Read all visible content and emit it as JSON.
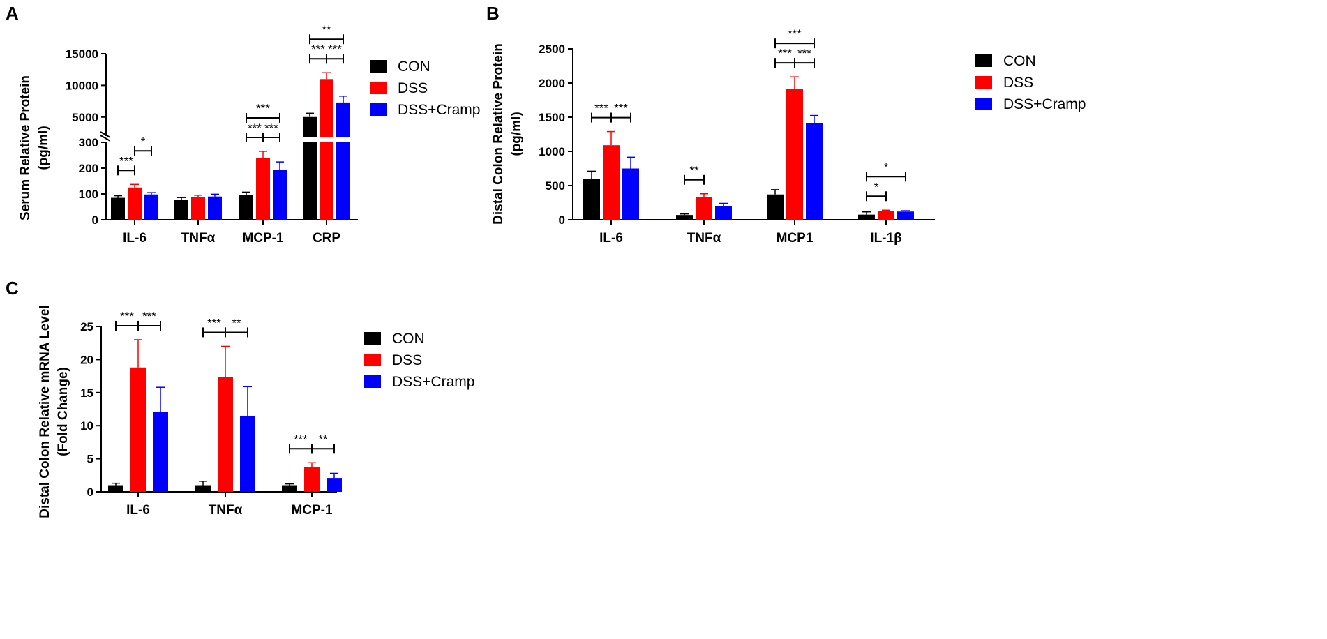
{
  "colors": {
    "CON": "#000000",
    "DSS": "#ff0000",
    "DSS+Cramp": "#0000ff"
  },
  "chart_data": [
    {
      "id": "A",
      "type": "bar",
      "panel_label": "A",
      "ylabel_line1": "Serum Relative Protein",
      "ylabel_line2": "(pg/ml)",
      "categories": [
        "IL-6",
        "TNFα",
        "MCP-1",
        "CRP"
      ],
      "series": [
        {
          "name": "CON",
          "values": [
            85,
            78,
            97,
            5000
          ],
          "errors": [
            8,
            8,
            10,
            600
          ]
        },
        {
          "name": "DSS",
          "values": [
            125,
            88,
            240,
            11000
          ],
          "errors": [
            12,
            7,
            25,
            1000
          ]
        },
        {
          "name": "DSS+Cramp",
          "values": [
            98,
            90,
            192,
            7300
          ],
          "errors": [
            7,
            9,
            32,
            1000
          ]
        }
      ],
      "axis_break": {
        "lower_range": [
          0,
          300
        ],
        "upper_range": [
          2000,
          15000
        ]
      },
      "ticks_lower": [
        "0",
        "100",
        "200",
        "300"
      ],
      "ticks_upper": [
        "5000",
        "10000",
        "15000"
      ],
      "tick_values_lower": [
        0,
        100,
        200,
        300
      ],
      "tick_values_upper": [
        5000,
        10000,
        15000
      ],
      "significance": [
        {
          "cat": 0,
          "from": 0,
          "to": 1,
          "label": "***",
          "level": 0
        },
        {
          "cat": 0,
          "from": 1,
          "to": 2,
          "label": "*",
          "level": 1
        },
        {
          "cat": 2,
          "from": 0,
          "to": 1,
          "label": "***",
          "level": 0
        },
        {
          "cat": 2,
          "from": 1,
          "to": 2,
          "label": "***",
          "level": 0
        },
        {
          "cat": 2,
          "from": 0,
          "to": 2,
          "label": "***",
          "level": 1
        },
        {
          "cat": 3,
          "from": 0,
          "to": 1,
          "label": "***",
          "level": 0
        },
        {
          "cat": 3,
          "from": 1,
          "to": 2,
          "label": "***",
          "level": 0
        },
        {
          "cat": 3,
          "from": 0,
          "to": 2,
          "label": "**",
          "level": 1
        }
      ],
      "legend": [
        "CON",
        "DSS",
        "DSS+Cramp"
      ]
    },
    {
      "id": "B",
      "type": "bar",
      "panel_label": "B",
      "ylabel_line1": "Distal Colon Relative Protein",
      "ylabel_line2": "(pg/ml)",
      "categories": [
        "IL-6",
        "TNFα",
        "MCP1",
        "IL-1β"
      ],
      "series": [
        {
          "name": "CON",
          "values": [
            600,
            70,
            370,
            75
          ],
          "errors": [
            110,
            15,
            70,
            40
          ]
        },
        {
          "name": "DSS",
          "values": [
            1090,
            330,
            1910,
            130
          ],
          "errors": [
            200,
            50,
            180,
            10
          ]
        },
        {
          "name": "DSS+Cramp",
          "values": [
            750,
            200,
            1410,
            120
          ],
          "errors": [
            165,
            40,
            115,
            12
          ]
        }
      ],
      "ylim": [
        0,
        2500
      ],
      "tick_values": [
        0,
        500,
        1000,
        1500,
        2000,
        2500
      ],
      "ticks": [
        "0",
        "500",
        "1000",
        "1500",
        "2000",
        "2500"
      ],
      "significance": [
        {
          "cat": 0,
          "from": 0,
          "to": 1,
          "label": "***",
          "level": 0
        },
        {
          "cat": 0,
          "from": 1,
          "to": 2,
          "label": "***",
          "level": 0
        },
        {
          "cat": 1,
          "from": 0,
          "to": 1,
          "label": "**",
          "level": 0
        },
        {
          "cat": 2,
          "from": 0,
          "to": 1,
          "label": "***",
          "level": 0
        },
        {
          "cat": 2,
          "from": 1,
          "to": 2,
          "label": "***",
          "level": 0
        },
        {
          "cat": 2,
          "from": 0,
          "to": 2,
          "label": "***",
          "level": 1
        },
        {
          "cat": 3,
          "from": 0,
          "to": 1,
          "label": "*",
          "level": 0
        },
        {
          "cat": 3,
          "from": 0,
          "to": 2,
          "label": "*",
          "level": 1
        }
      ],
      "legend": [
        "CON",
        "DSS",
        "DSS+Cramp"
      ]
    },
    {
      "id": "C",
      "type": "bar",
      "panel_label": "C",
      "ylabel_line1": "Distal  Colon Relative mRNA Level",
      "ylabel_line2": "(Fold Change)",
      "categories": [
        "IL-6",
        "TNFα",
        "MCP-1"
      ],
      "series": [
        {
          "name": "CON",
          "values": [
            1.0,
            1.0,
            1.0
          ],
          "errors": [
            0.3,
            0.6,
            0.2
          ]
        },
        {
          "name": "DSS",
          "values": [
            18.8,
            17.4,
            3.7
          ],
          "errors": [
            4.2,
            4.6,
            0.7
          ]
        },
        {
          "name": "DSS+Cramp",
          "values": [
            12.1,
            11.5,
            2.1
          ],
          "errors": [
            3.7,
            4.4,
            0.7
          ]
        }
      ],
      "ylim": [
        0,
        25
      ],
      "tick_values": [
        0,
        5,
        10,
        15,
        20,
        25
      ],
      "ticks": [
        "0",
        "5",
        "10",
        "15",
        "20",
        "25"
      ],
      "significance": [
        {
          "cat": 0,
          "from": 0,
          "to": 1,
          "label": "***",
          "level": 0
        },
        {
          "cat": 0,
          "from": 1,
          "to": 2,
          "label": "***",
          "level": 0
        },
        {
          "cat": 1,
          "from": 0,
          "to": 1,
          "label": "***",
          "level": 0
        },
        {
          "cat": 1,
          "from": 1,
          "to": 2,
          "label": "**",
          "level": 0
        },
        {
          "cat": 2,
          "from": 0,
          "to": 1,
          "label": "***",
          "level": 0
        },
        {
          "cat": 2,
          "from": 1,
          "to": 2,
          "label": "**",
          "level": 0
        }
      ],
      "legend": [
        "CON",
        "DSS",
        "DSS+Cramp"
      ]
    }
  ]
}
